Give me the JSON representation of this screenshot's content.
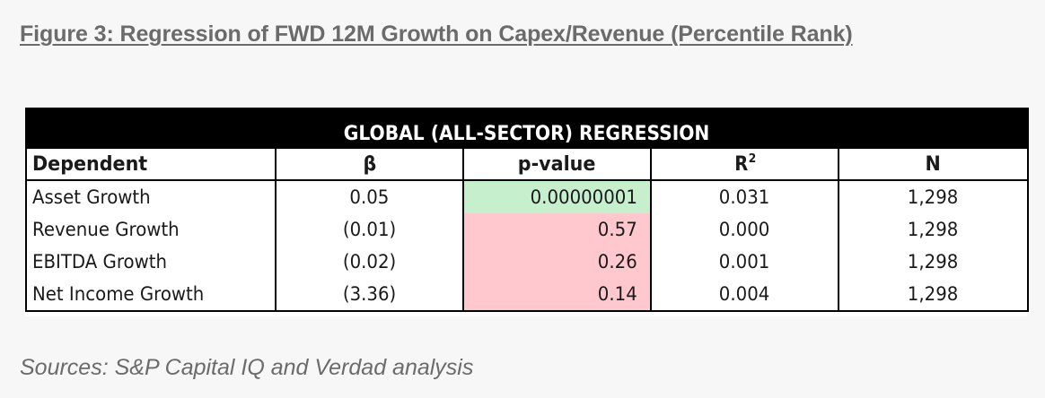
{
  "figure": {
    "title": "Figure 3: Regression of FWD 12M Growth on Capex/Revenue (Percentile Rank)",
    "sources": "Sources: S&P Capital IQ and Verdad analysis"
  },
  "table": {
    "banner": "GLOBAL (ALL-SECTOR) REGRESSION",
    "headers": {
      "dependent": "Dependent",
      "beta": "β",
      "p_value": "p-value",
      "r2_base": "R",
      "r2_sup": "2",
      "n": "N"
    },
    "rows": [
      {
        "dependent": "Asset Growth",
        "beta": "0.05",
        "p_value": "0.00000001",
        "r2": "0.031",
        "n": "1,298",
        "p_color": "#c6efce"
      },
      {
        "dependent": "Revenue Growth",
        "beta": "(0.01)",
        "p_value": "0.57",
        "r2": "0.000",
        "n": "1,298",
        "p_color": "#ffc7ce"
      },
      {
        "dependent": "EBITDA Growth",
        "beta": "(0.02)",
        "p_value": "0.26",
        "r2": "0.001",
        "n": "1,298",
        "p_color": "#ffc7ce"
      },
      {
        "dependent": "Net Income Growth",
        "beta": "(3.36)",
        "p_value": "0.14",
        "r2": "0.004",
        "n": "1,298",
        "p_color": "#ffc7ce"
      }
    ]
  },
  "colors": {
    "significant": "#c6efce",
    "not_significant": "#ffc7ce",
    "banner_bg": "#000000",
    "caption_text": "#6b6b6b"
  }
}
